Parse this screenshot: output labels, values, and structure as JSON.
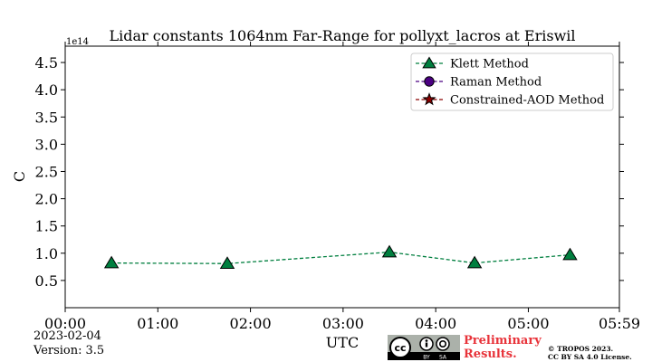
{
  "chart_data": {
    "type": "line",
    "title": "Lidar constants 1064nm Far-Range for pollyxt_lacros at Eriswil",
    "xlabel": "UTC",
    "ylabel": "C",
    "y_multiplier": "1e14",
    "x_ticks": [
      "00:00",
      "01:00",
      "02:00",
      "03:00",
      "04:00",
      "05:00",
      "05:59"
    ],
    "x_range_hours": [
      0,
      5.983
    ],
    "y_ticks": [
      "0.5",
      "1.0",
      "1.5",
      "2.0",
      "2.5",
      "3.0",
      "3.5",
      "4.0",
      "4.5"
    ],
    "ylim": [
      0,
      4.8
    ],
    "grid": false,
    "legend_position": "top-right",
    "series": [
      {
        "name": "Klett Method",
        "color": "#007f3f",
        "marker": "triangle",
        "x_hours": [
          0.5,
          1.75,
          3.5,
          4.42,
          5.45
        ],
        "values": [
          0.82,
          0.81,
          1.02,
          0.82,
          0.97
        ]
      },
      {
        "name": "Raman Method",
        "color": "#4b0082",
        "marker": "circle",
        "x_hours": [],
        "values": []
      },
      {
        "name": "Constrained-AOD Method",
        "color": "#8b0000",
        "marker": "star",
        "x_hours": [],
        "values": []
      }
    ]
  },
  "footer": {
    "date": "2023-02-04",
    "version_label": "Version:",
    "version_value": "3.5",
    "license_badge_left": "cc",
    "license_badge_by": "BY",
    "license_badge_sa": "SA",
    "preliminary_line1": "Preliminary",
    "preliminary_line2": "Results.",
    "copyright_line1": "© TROPOS 2023.",
    "copyright_line2": "CC BY SA 4.0 License."
  }
}
